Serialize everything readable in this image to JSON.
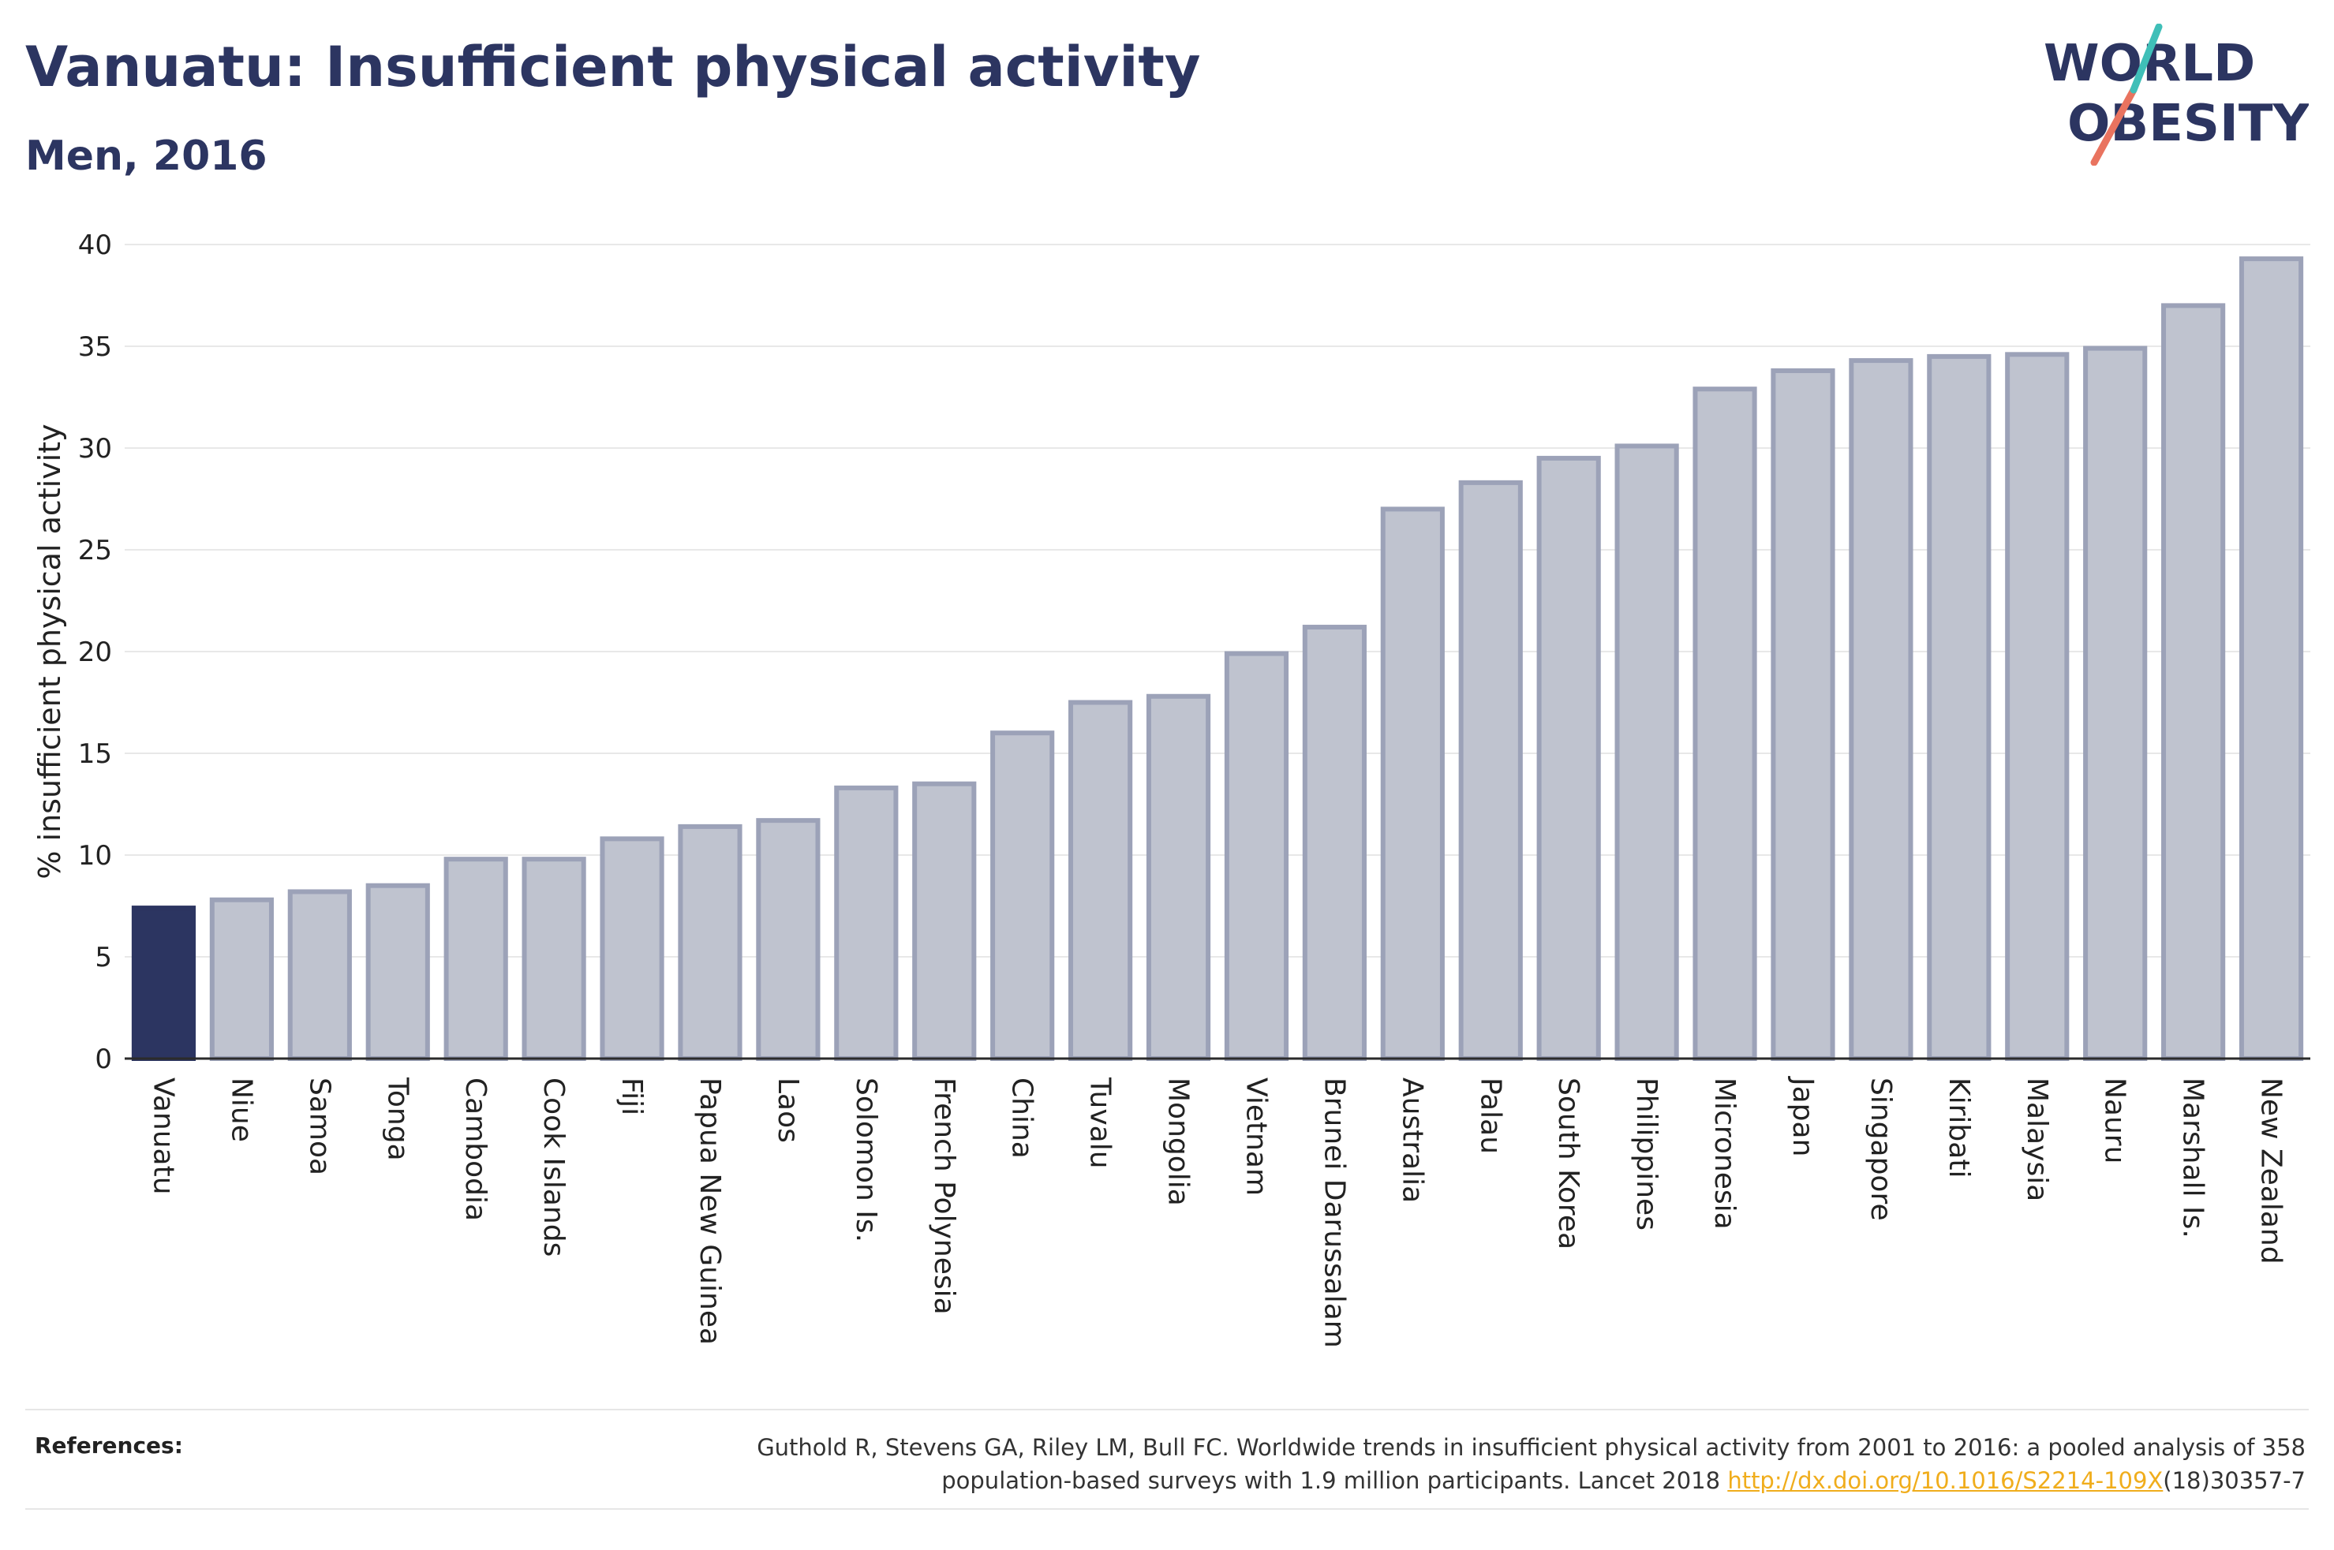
{
  "header": {
    "title": "Vanuatu: Insufficient physical activity",
    "subtitle": "Men, 2016"
  },
  "logo": {
    "line1": "WORLD",
    "line2": "OBESITY"
  },
  "colors": {
    "highlight": "#2c3561",
    "bar_fill": "#bfc3cf",
    "bar_stroke": "#9ca2b8",
    "grid": "#e8e8e8",
    "link": "#f0ad1c"
  },
  "chart_data": {
    "type": "bar",
    "ylabel": "% insufficient physical activity",
    "ylim": [
      0,
      40
    ],
    "yticks": [
      0,
      5,
      10,
      15,
      20,
      25,
      30,
      35,
      40
    ],
    "grid": true,
    "highlight": "Vanuatu",
    "categories": [
      "Vanuatu",
      "Niue",
      "Samoa",
      "Tonga",
      "Cambodia",
      "Cook Islands",
      "Fiji",
      "Papua New Guinea",
      "Laos",
      "Solomon Is.",
      "French Polynesia",
      "China",
      "Tuvalu",
      "Mongolia",
      "Vietnam",
      "Brunei Darussalam",
      "Australia",
      "Palau",
      "South Korea",
      "Philippines",
      "Micronesia",
      "Japan",
      "Singapore",
      "Kiribati",
      "Malaysia",
      "Nauru",
      "Marshall Is.",
      "New Zealand"
    ],
    "values": [
      7.4,
      7.8,
      8.2,
      8.5,
      9.8,
      9.8,
      10.8,
      11.4,
      11.7,
      13.3,
      13.5,
      16.0,
      17.5,
      17.8,
      19.9,
      21.2,
      27.0,
      28.3,
      29.5,
      30.1,
      32.9,
      33.8,
      34.3,
      34.5,
      34.6,
      34.9,
      37.0,
      39.3
    ]
  },
  "references": {
    "label": "References:",
    "line1": "Guthold R, Stevens GA, Riley LM, Bull FC. Worldwide trends in insufficient physical activity from 2001 to 2016: a pooled analysis of 358",
    "line2_pre": "population-based surveys with 1.9 million participants. Lancet 2018 ",
    "link": "http://dx.doi.org/10.1016/S2214-109X",
    "line2_post": "(18)30357-7"
  }
}
